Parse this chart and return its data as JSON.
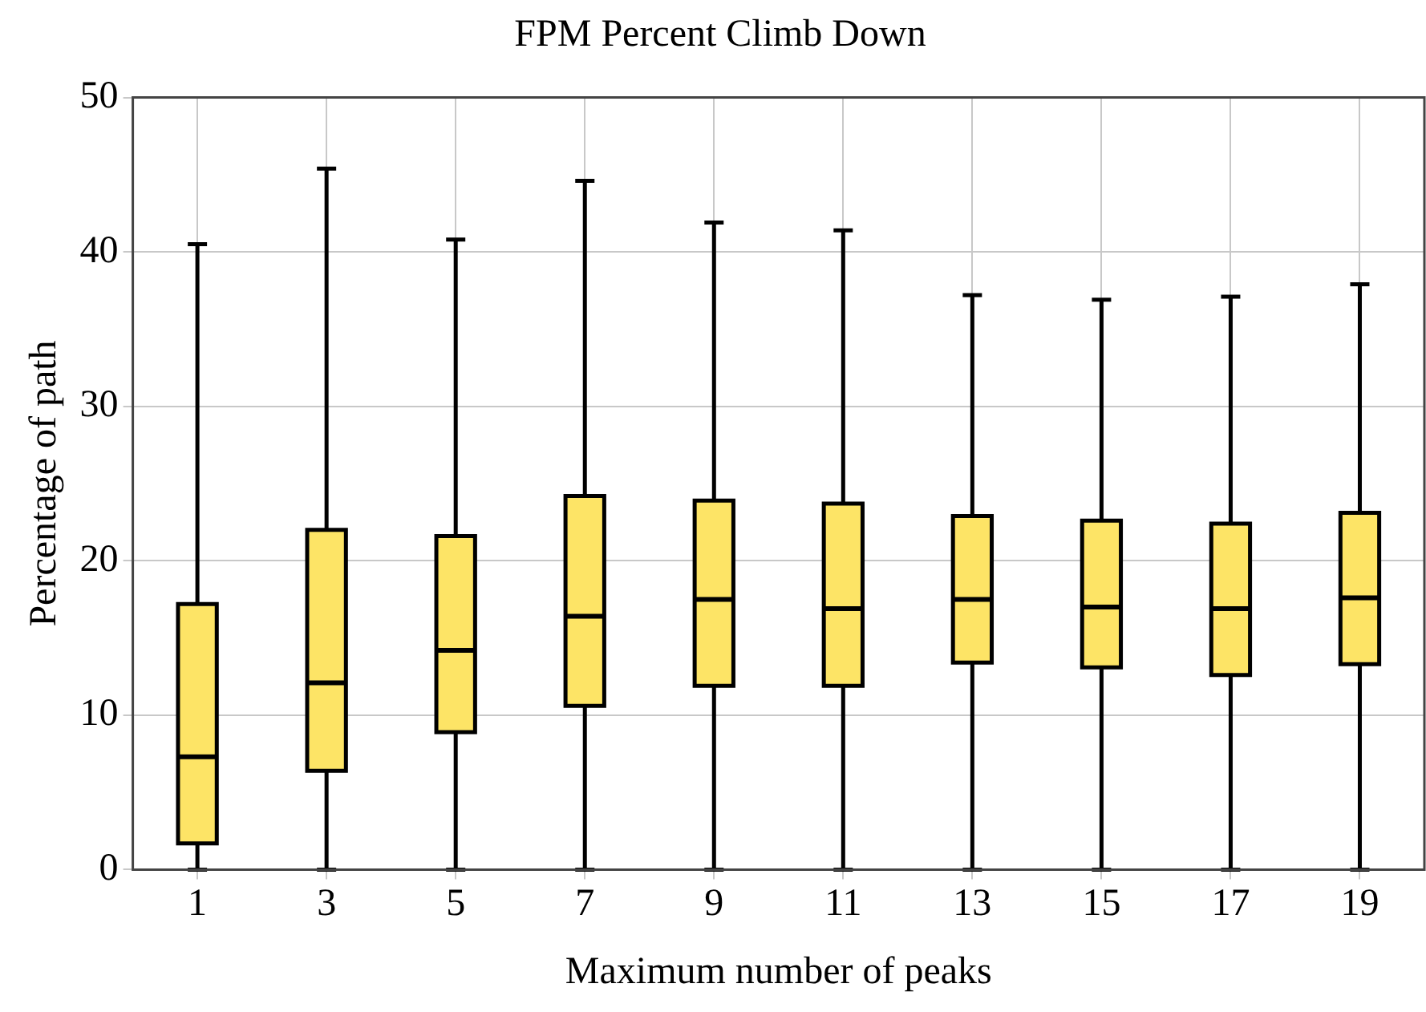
{
  "chart_data": {
    "type": "box",
    "title": "FPM Percent Climb Down",
    "xlabel": "Maximum number of peaks",
    "ylabel": "Percentage of path",
    "categories": [
      "1",
      "3",
      "5",
      "7",
      "9",
      "11",
      "13",
      "15",
      "17",
      "19"
    ],
    "ylim": [
      0,
      50
    ],
    "yticks": [
      0,
      10,
      20,
      30,
      40,
      50
    ],
    "grid": true,
    "series": [
      {
        "color": "#fde466",
        "boxes": [
          {
            "low": 0,
            "q1": 1.7,
            "median": 7.3,
            "q3": 17.2,
            "high": 40.5
          },
          {
            "low": 0,
            "q1": 6.4,
            "median": 12.1,
            "q3": 22.0,
            "high": 45.4
          },
          {
            "low": 0,
            "q1": 8.9,
            "median": 14.2,
            "q3": 21.6,
            "high": 40.8
          },
          {
            "low": 0,
            "q1": 10.6,
            "median": 16.4,
            "q3": 24.2,
            "high": 44.6
          },
          {
            "low": 0,
            "q1": 11.9,
            "median": 17.5,
            "q3": 23.9,
            "high": 41.9
          },
          {
            "low": 0,
            "q1": 11.9,
            "median": 16.9,
            "q3": 23.7,
            "high": 41.4
          },
          {
            "low": 0,
            "q1": 13.4,
            "median": 17.5,
            "q3": 22.9,
            "high": 37.2
          },
          {
            "low": 0,
            "q1": 13.1,
            "median": 17.0,
            "q3": 22.6,
            "high": 36.9
          },
          {
            "low": 0,
            "q1": 12.6,
            "median": 16.9,
            "q3": 22.4,
            "high": 37.1
          },
          {
            "low": 0,
            "q1": 13.3,
            "median": 17.6,
            "q3": 23.1,
            "high": 37.9
          }
        ]
      }
    ]
  }
}
